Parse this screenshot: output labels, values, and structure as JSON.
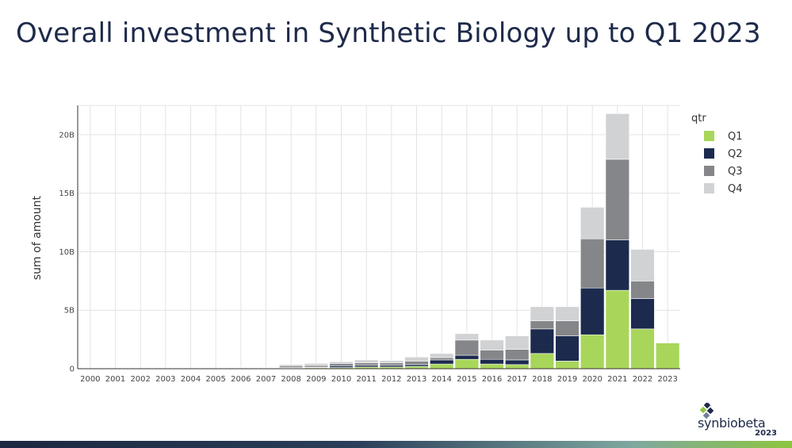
{
  "slide": {
    "title": "Overall investment in Synthetic Biology up to Q1 2023"
  },
  "logo": {
    "name": "synbiobeta",
    "year": "2023"
  },
  "colors": {
    "title": "#1e2a4a",
    "grid": "#e3e3e3",
    "bottom_bar_start": "#1c2740",
    "bottom_bar_end": "#8cc63f"
  },
  "chart_data": {
    "type": "bar",
    "stacked": true,
    "title": "",
    "xlabel": "",
    "ylabel": "sum of amount",
    "ylim": [
      0,
      22500000000
    ],
    "yticks": [
      0,
      5000000000,
      10000000000,
      15000000000,
      20000000000
    ],
    "ytick_labels": [
      "0",
      "5B",
      "10B",
      "15B",
      "20B"
    ],
    "grid": true,
    "legend": {
      "title": "qtr",
      "position": "right"
    },
    "categories": [
      "2000",
      "2001",
      "2002",
      "2003",
      "2004",
      "2005",
      "2006",
      "2007",
      "2008",
      "2009",
      "2010",
      "2011",
      "2012",
      "2013",
      "2014",
      "2015",
      "2016",
      "2017",
      "2018",
      "2019",
      "2020",
      "2021",
      "2022",
      "2023"
    ],
    "series": [
      {
        "name": "Q1",
        "color": "#a8d65a",
        "values": [
          0,
          0,
          0,
          0,
          0,
          0,
          0.02,
          0.03,
          0.05,
          0.08,
          0.1,
          0.15,
          0.15,
          0.2,
          0.4,
          0.8,
          0.4,
          0.35,
          1.3,
          0.65,
          2.9,
          6.7,
          3.4,
          2.2
        ]
      },
      {
        "name": "Q2",
        "color": "#1c2a4e",
        "values": [
          0,
          0,
          0,
          0,
          0,
          0,
          0.02,
          0.03,
          0.05,
          0.05,
          0.15,
          0.15,
          0.15,
          0.15,
          0.35,
          0.35,
          0.4,
          0.4,
          2.1,
          2.15,
          4.0,
          4.3,
          2.6,
          0
        ]
      },
      {
        "name": "Q3",
        "color": "#858689",
        "values": [
          0,
          0,
          0,
          0,
          0,
          0,
          0.03,
          0.03,
          0.15,
          0.15,
          0.2,
          0.2,
          0.2,
          0.3,
          0.2,
          1.3,
          0.8,
          0.9,
          0.7,
          1.3,
          4.2,
          6.9,
          1.5,
          0
        ]
      },
      {
        "name": "Q4",
        "color": "#d1d2d4",
        "values": [
          0,
          0,
          0,
          0,
          0,
          0,
          0.03,
          0.04,
          0.1,
          0.17,
          0.15,
          0.25,
          0.2,
          0.35,
          0.35,
          0.55,
          0.85,
          1.15,
          1.2,
          1.2,
          2.7,
          3.9,
          2.7,
          0
        ]
      }
    ],
    "value_unit": "B"
  }
}
